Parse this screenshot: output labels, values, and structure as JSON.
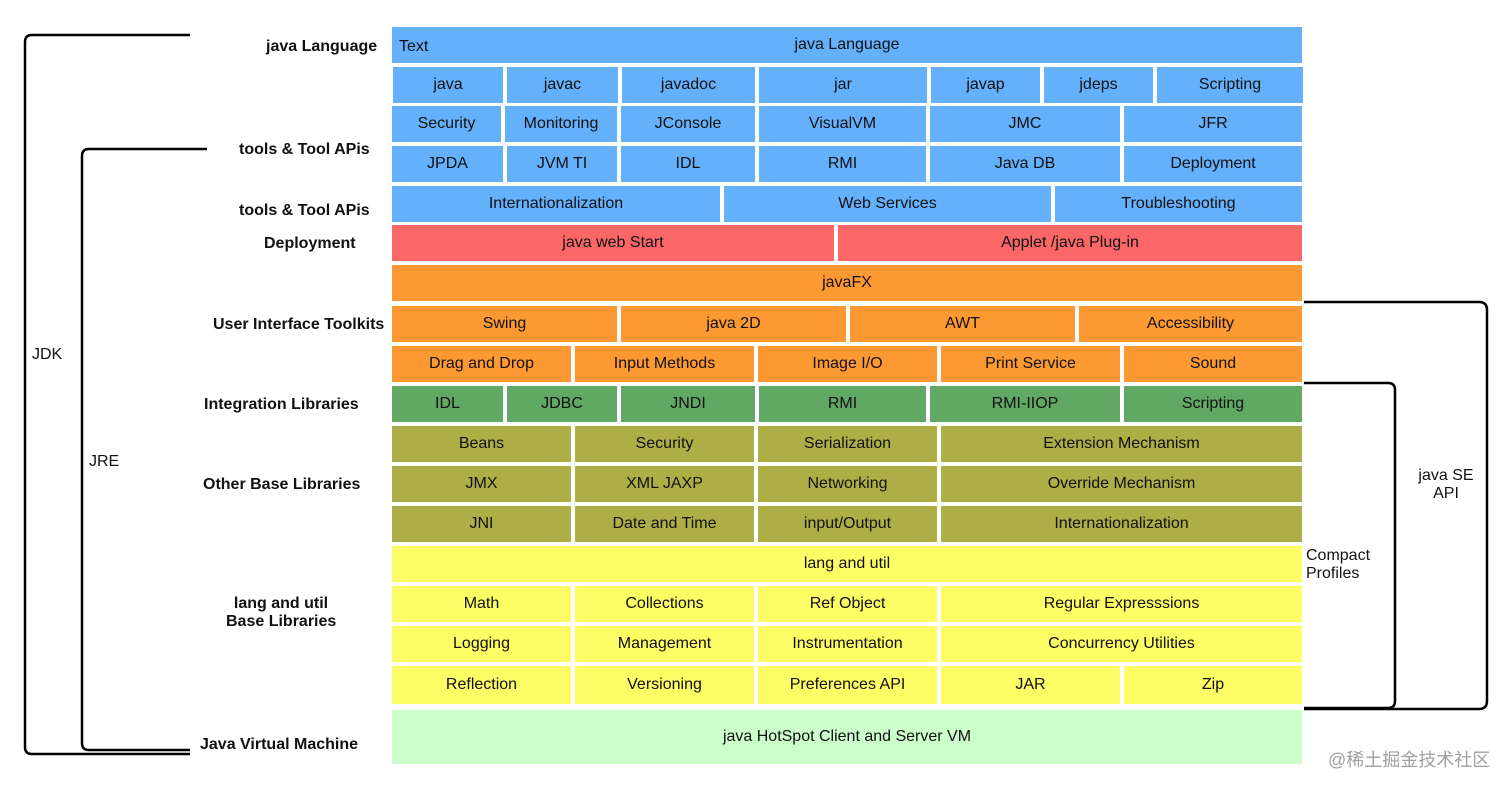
{
  "colors": {
    "blue": "#64b0fb",
    "red": "#fb6666",
    "orange": "#fd9933",
    "green": "#62a865",
    "olive": "#aeae46",
    "yellow": "#fdfd66",
    "mint": "#ccfecc"
  },
  "text_tag": "Text",
  "side_labels": {
    "java_language": "java Language",
    "tools_1": "tools & Tool APis",
    "tools_2": "tools & Tool APis",
    "deployment": "Deployment",
    "ui_toolkits": "User Interface Toolkits",
    "integration": "Integration Libraries",
    "other_base": "Other Base Libraries",
    "lang_util_line1": "lang and util",
    "lang_util_line2": "Base Libraries",
    "jvm": "Java  Virtual Machine"
  },
  "brackets": {
    "jdk": "JDK",
    "jre": "JRE",
    "compact_line1": "Compact",
    "compact_line2": "Profiles",
    "javase_line1": "java SE",
    "javase_line2": "API"
  },
  "watermark": "@稀土掘金技术社区",
  "rows": [
    {
      "color": "blue",
      "cells": [
        "java Language"
      ]
    },
    {
      "color": "blue",
      "cells": [
        "java",
        "javac",
        "javadoc",
        "jar",
        "javap",
        "jdeps",
        "Scripting"
      ]
    },
    {
      "color": "blue",
      "cells": [
        "Security",
        "Monitoring",
        "JConsole",
        "VisualVM",
        "JMC",
        "JFR"
      ]
    },
    {
      "color": "blue",
      "cells": [
        "JPDA",
        "JVM TI",
        "IDL",
        "RMI",
        "Java DB",
        "Deployment"
      ]
    },
    {
      "color": "blue",
      "cells": [
        "Internationalization",
        "Web Services",
        "Troubleshooting"
      ]
    },
    {
      "color": "red",
      "cells": [
        "java web Start",
        "Applet /java Plug-in"
      ]
    },
    {
      "color": "orange",
      "cells": [
        "javaFX"
      ]
    },
    {
      "color": "orange",
      "cells": [
        "Swing",
        "java 2D",
        "AWT",
        "Accessibility"
      ]
    },
    {
      "color": "orange",
      "cells": [
        "Drag and Drop",
        "Input Methods",
        "Image I/O",
        "Print Service",
        "Sound"
      ]
    },
    {
      "color": "green",
      "cells": [
        "IDL",
        "JDBC",
        "JNDI",
        "RMI",
        "RMI-IIOP",
        "Scripting"
      ]
    },
    {
      "color": "olive",
      "cells": [
        "Beans",
        "Security",
        "Serialization",
        "Extension Mechanism"
      ]
    },
    {
      "color": "olive",
      "cells": [
        "JMX",
        "XML JAXP",
        "Networking",
        "Override Mechanism"
      ]
    },
    {
      "color": "olive",
      "cells": [
        "JNI",
        "Date and Time",
        "input/Output",
        "Internationalization"
      ]
    },
    {
      "color": "yellow",
      "cells": [
        "lang and util"
      ]
    },
    {
      "color": "yellow",
      "cells": [
        "Math",
        "Collections",
        "Ref Object",
        "Regular Expresssions"
      ]
    },
    {
      "color": "yellow",
      "cells": [
        "Logging",
        "Management",
        "Instrumentation",
        "Concurrency Utilities"
      ]
    },
    {
      "color": "yellow",
      "cells": [
        "Reflection",
        "Versioning",
        "Preferences API",
        "JAR",
        "Zip"
      ]
    },
    {
      "color": "mint",
      "cells": [
        "java HotSpot Client and Server VM"
      ]
    }
  ]
}
